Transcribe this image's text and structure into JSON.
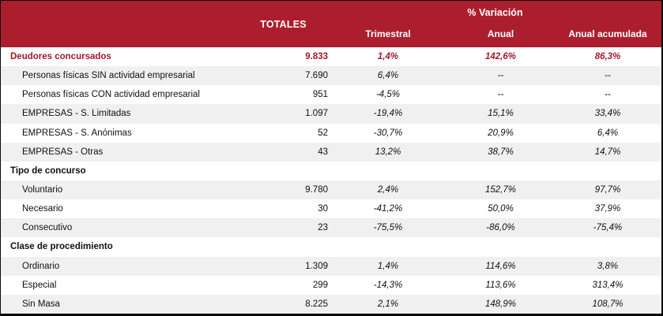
{
  "colors": {
    "header_bg": "#AC1E2E",
    "header_text": "#FFFFFF",
    "accent_red": "#A3182D",
    "stripe_gray": "#F0F0F0",
    "border_black": "#0A0A0A",
    "body_text": "#111111"
  },
  "table": {
    "header": {
      "totales": "TOTALES",
      "variacion": "% Variación",
      "sub": [
        "Trimestral",
        "Anual",
        "Anual acumulada"
      ]
    },
    "rows": [
      {
        "type": "highlight",
        "label": "Deudores concursados",
        "total": "9.833",
        "trimestral": "1,4%",
        "anual": "142,6%",
        "acumulada": "86,3%"
      },
      {
        "type": "item",
        "label": "Personas físicas SIN actividad empresarial",
        "total": "7.690",
        "trimestral": "6,4%",
        "anual": "--",
        "acumulada": "--"
      },
      {
        "type": "item",
        "label": "Personas físicas CON actividad empresarial",
        "total": "951",
        "trimestral": "-4,5%",
        "anual": "--",
        "acumulada": "--"
      },
      {
        "type": "item",
        "label": "EMPRESAS - S. Limitadas",
        "total": "1.097",
        "trimestral": "-19,4%",
        "anual": "15,1%",
        "acumulada": "33,4%"
      },
      {
        "type": "item",
        "label": "EMPRESAS - S. Anónimas",
        "total": "52",
        "trimestral": "-30,7%",
        "anual": "20,9%",
        "acumulada": "6,4%"
      },
      {
        "type": "item",
        "label": "EMPRESAS - Otras",
        "total": "43",
        "trimestral": "13,2%",
        "anual": "38,7%",
        "acumulada": "14,7%"
      },
      {
        "type": "section",
        "label": "Tipo de concurso",
        "total": "",
        "trimestral": "",
        "anual": "",
        "acumulada": ""
      },
      {
        "type": "item",
        "label": "Voluntario",
        "total": "9.780",
        "trimestral": "2,4%",
        "anual": "152,7%",
        "acumulada": "97,7%"
      },
      {
        "type": "item",
        "label": "Necesario",
        "total": "30",
        "trimestral": "-41,2%",
        "anual": "50,0%",
        "acumulada": "37,9%"
      },
      {
        "type": "item",
        "label": "Consecutivo",
        "total": "23",
        "trimestral": "-75,5%",
        "anual": "-86,0%",
        "acumulada": "-75,4%"
      },
      {
        "type": "section",
        "label": "Clase de procedimiento",
        "total": "",
        "trimestral": "",
        "anual": "",
        "acumulada": ""
      },
      {
        "type": "item",
        "label": "Ordinario",
        "total": "1.309",
        "trimestral": "1,4%",
        "anual": "114,6%",
        "acumulada": "3,8%"
      },
      {
        "type": "item",
        "label": "Especial",
        "total": "299",
        "trimestral": "-14,3%",
        "anual": "113,6%",
        "acumulada": "313,4%"
      },
      {
        "type": "item",
        "label": "Sin Masa",
        "total": "8.225",
        "trimestral": "2,1%",
        "anual": "148,9%",
        "acumulada": "108,7%"
      }
    ]
  },
  "chart_data": {
    "type": "table",
    "title": "",
    "columns": [
      "",
      "TOTALES",
      "% Variación Trimestral",
      "% Variación Anual",
      "% Variación Anual acumulada"
    ],
    "rows": [
      [
        "Deudores concursados",
        "9.833",
        "1,4%",
        "142,6%",
        "86,3%"
      ],
      [
        "Personas físicas SIN actividad empresarial",
        "7.690",
        "6,4%",
        "--",
        "--"
      ],
      [
        "Personas físicas CON actividad empresarial",
        "951",
        "-4,5%",
        "--",
        "--"
      ],
      [
        "EMPRESAS - S. Limitadas",
        "1.097",
        "-19,4%",
        "15,1%",
        "33,4%"
      ],
      [
        "EMPRESAS - S. Anónimas",
        "52",
        "-30,7%",
        "20,9%",
        "6,4%"
      ],
      [
        "EMPRESAS - Otras",
        "43",
        "13,2%",
        "38,7%",
        "14,7%"
      ],
      [
        "Tipo de concurso",
        "",
        "",
        "",
        ""
      ],
      [
        "Voluntario",
        "9.780",
        "2,4%",
        "152,7%",
        "97,7%"
      ],
      [
        "Necesario",
        "30",
        "-41,2%",
        "50,0%",
        "37,9%"
      ],
      [
        "Consecutivo",
        "23",
        "-75,5%",
        "-86,0%",
        "-75,4%"
      ],
      [
        "Clase de procedimiento",
        "",
        "",
        "",
        ""
      ],
      [
        "Ordinario",
        "1.309",
        "1,4%",
        "114,6%",
        "3,8%"
      ],
      [
        "Especial",
        "299",
        "-14,3%",
        "113,6%",
        "313,4%"
      ],
      [
        "Sin Masa",
        "8.225",
        "2,1%",
        "148,9%",
        "108,7%"
      ]
    ]
  }
}
